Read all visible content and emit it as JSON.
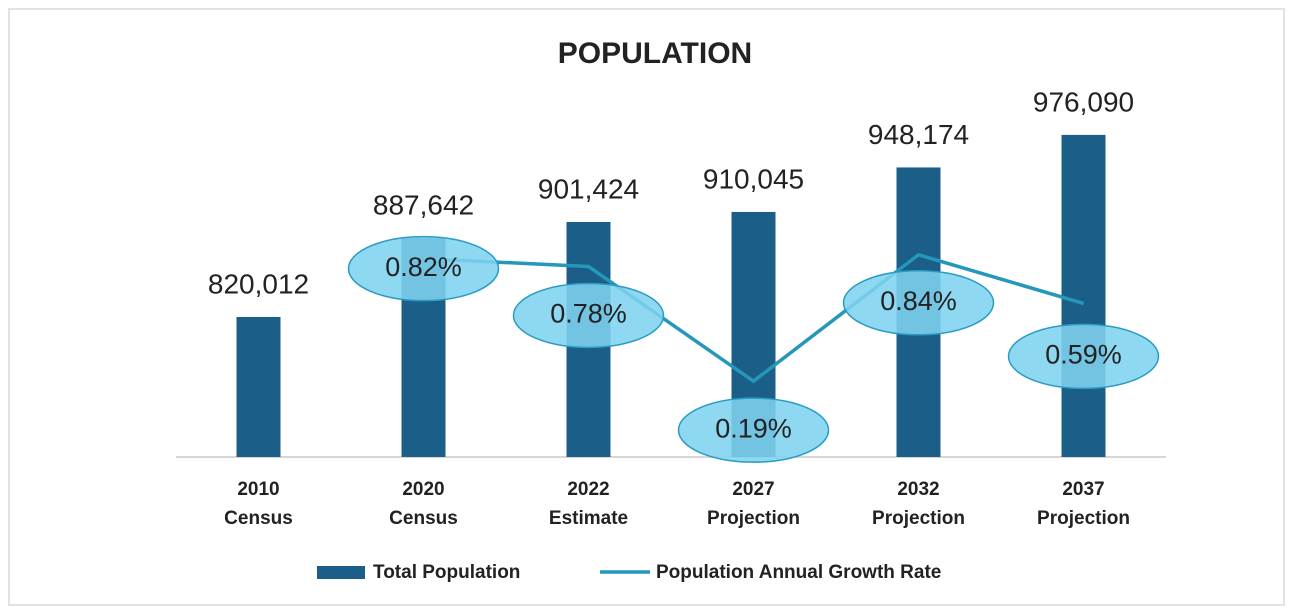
{
  "chart_data": {
    "type": "bar",
    "title": "POPULATION",
    "categories": [
      [
        "2010",
        "Census"
      ],
      [
        "2020",
        "Census"
      ],
      [
        "2022",
        "Estimate"
      ],
      [
        "2027",
        "Projection"
      ],
      [
        "2032",
        "Projection"
      ],
      [
        "2037",
        "Projection"
      ]
    ],
    "series": [
      {
        "name": "Total Population",
        "type": "bar",
        "color": "#1b5e88",
        "values": [
          820012,
          887642,
          901424,
          910045,
          948174,
          976090
        ],
        "value_labels": [
          "820,012",
          "887,642",
          "901,424",
          "910,045",
          "948,174",
          "976,090"
        ]
      },
      {
        "name": "Population Annual Growth Rate",
        "type": "line",
        "axis": "y2",
        "color": "#2497bb",
        "values": [
          null,
          0.82,
          0.78,
          0.19,
          0.84,
          0.59
        ],
        "value_labels": [
          null,
          "0.82%",
          "0.78%",
          "0.19%",
          "0.84%",
          "0.59%"
        ]
      }
    ],
    "ylim": [
      700000,
      1000000
    ],
    "y2lim": [
      -0.2,
      1.6
    ],
    "legend": "bottom"
  }
}
